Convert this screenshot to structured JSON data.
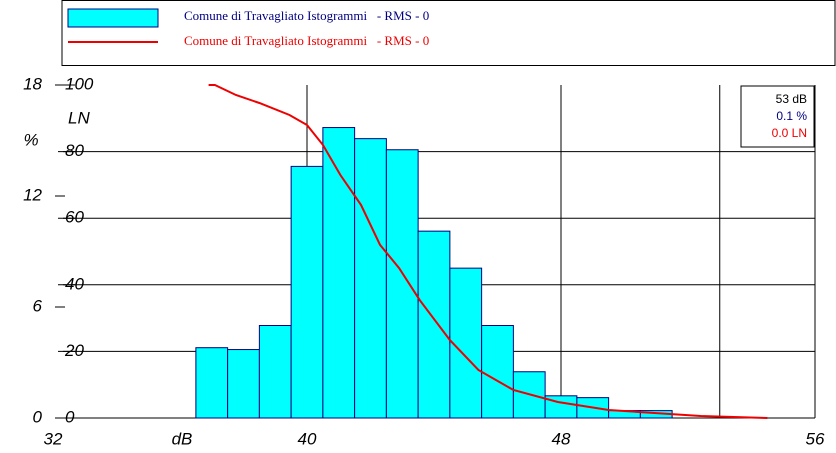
{
  "chart_data": {
    "type": "histogram",
    "bins": [
      36.5,
      37.5,
      38.5,
      39.5,
      40.5,
      41.5,
      42.5,
      43.5,
      44.5,
      45.5,
      46.5,
      47.5,
      48.5,
      49.5,
      50.5,
      51.5
    ],
    "series": [
      {
        "name": "Comune di Travagliato Istogrammi   - RMS - 0",
        "color": "#00ffff",
        "values": [
          3.8,
          3.7,
          5.0,
          13.6,
          15.7,
          15.1,
          14.5,
          10.1,
          8.1,
          5.0,
          2.5,
          1.2,
          1.1,
          0.4,
          0.4
        ]
      },
      {
        "name": "Comune di Travagliato Istogrammi   - RMS - 0",
        "color": "#ee0000",
        "axis": "y2",
        "x": [
          36.9,
          37.1,
          37.76,
          38.5,
          39.45,
          40,
          40.5,
          41.05,
          41.7,
          42.3,
          42.9,
          43.55,
          44.5,
          45.4,
          46.5,
          47.9,
          49.5,
          52.4,
          54.5
        ],
        "values": [
          100,
          100,
          97,
          94.6,
          91,
          88,
          82,
          73,
          64,
          52,
          45,
          35.4,
          23.4,
          14.4,
          8.4,
          4.8,
          2.4,
          0.6,
          0
        ]
      }
    ],
    "xlim": [
      32,
      56
    ],
    "xticks": [
      32,
      40,
      48,
      56
    ],
    "xlabel": "dB",
    "ylim": [
      0,
      18
    ],
    "yticks": [
      0,
      6,
      12,
      18
    ],
    "ylabel": "%",
    "y2lim": [
      0,
      100
    ],
    "y2ticks": [
      0,
      20,
      40,
      60,
      80,
      100
    ],
    "y2label": "LN",
    "grid": true,
    "cursor_x": 53,
    "readout": [
      "53 dB",
      "0.1 %",
      "0.0 LN"
    ]
  }
}
